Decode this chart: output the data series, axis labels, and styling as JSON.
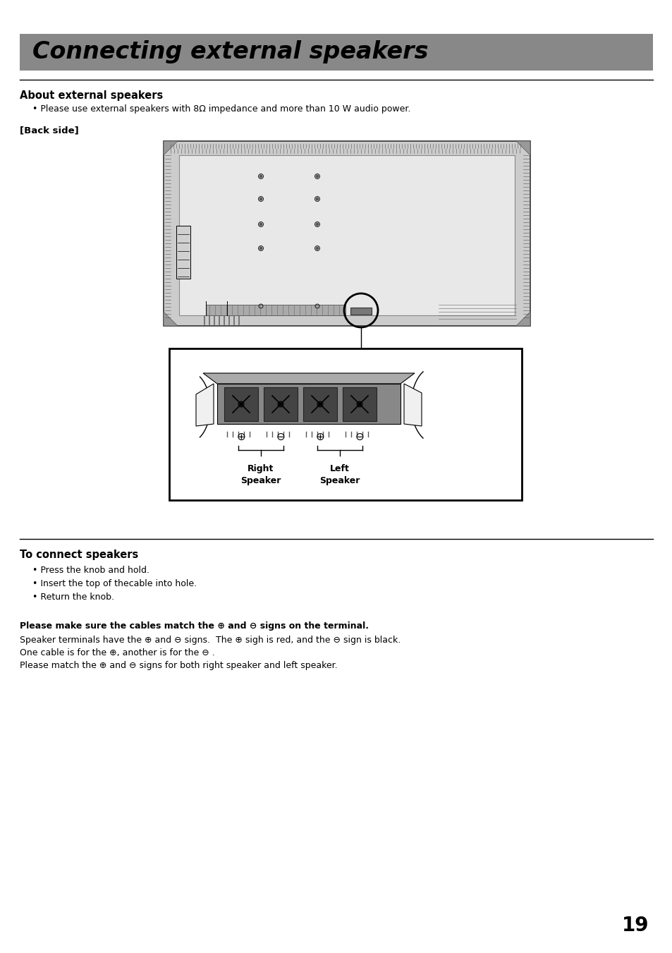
{
  "title": "Connecting external speakers",
  "title_bg": "#888888",
  "title_color": "#000000",
  "section1_header": "About external speakers",
  "section1_bullet": "Please use external speakers with 8Ω impedance and more than 10 W audio power.",
  "back_side_label": "[Back side]",
  "section2_header": "To connect speakers",
  "section2_bullets": [
    "Press the knob and hold.",
    "Insert the top of thecable into hole.",
    "Return the knob."
  ],
  "bold_text": "Please make sure the cables match the ⊕ and ⊖ signs on the terminal.",
  "normal_texts": [
    "Speaker terminals have the ⊕ and ⊖ signs.  The ⊕ sigh is red, and the ⊖ sign is black.",
    "One cable is for the ⊕, another is for the ⊖ .",
    "Please match the ⊕ and ⊖ signs for both right speaker and left speaker."
  ],
  "page_number": "19",
  "bg_color": "#ffffff",
  "text_color": "#000000"
}
